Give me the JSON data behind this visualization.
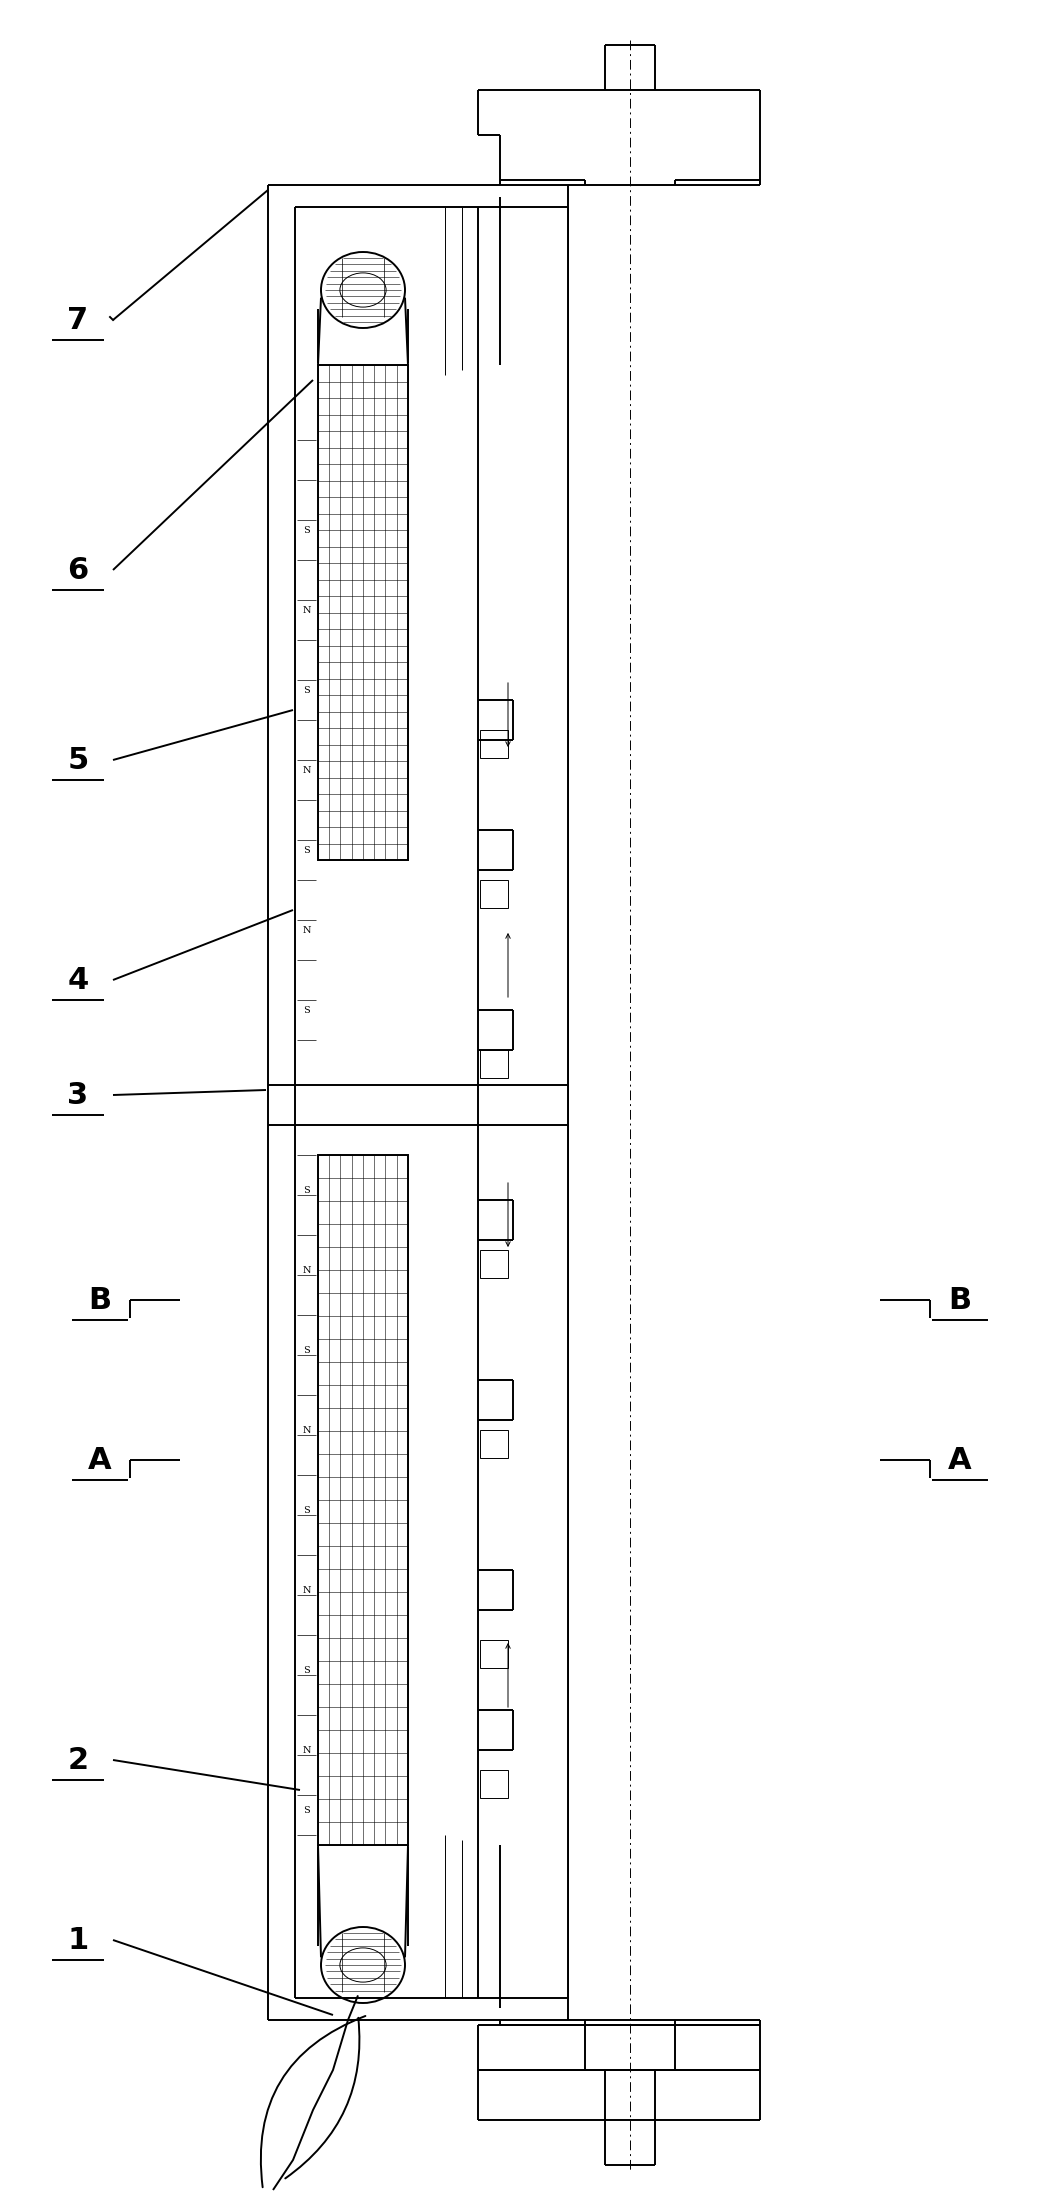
{
  "bg": "#ffffff",
  "lc": "#000000",
  "lw": 1.4,
  "lwt": 0.7,
  "lwv": 0.4,
  "fw": 10.37,
  "fh": 21.89,
  "notes": "Pixel analysis: image 1037x2189. Key x positions in norm coords (0-1): left_outer_wall~0.255, stator_left_inner~0.285, lamination_left~0.305, lamination_right~0.395, stator_right_wall~0.415, shaft_gap~0.42-0.455, right_body_left~0.455, right_body_right~0.56, right_step~0.575, right_outer~0.595, centerline~0.62. Key y: top_shaft~0.975, top_bearing_top~0.925, top_bearing_bot~0.875, stator_top~0.855, lam_top~0.84, section3_top~0.50, section3_bot~0.485, lam_bot~0.16, stator_bot~0.145, bot_bearing_bot~0.065, bot_shaft_end~0.03"
}
